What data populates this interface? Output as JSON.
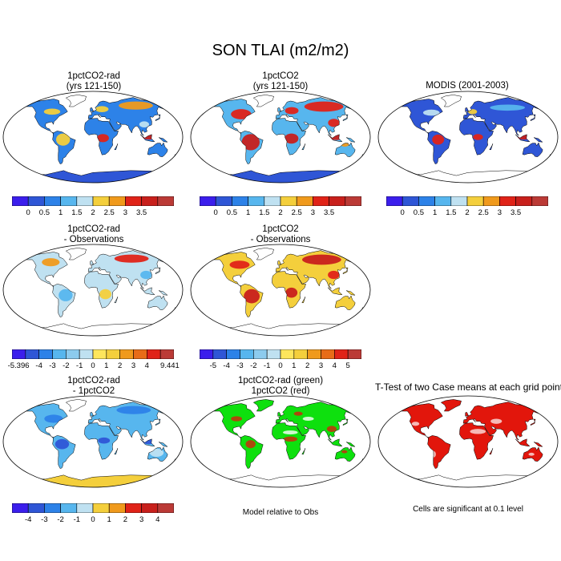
{
  "title": "SON TLAI (m2/m2)",
  "colors": {
    "tlai": [
      "#3b1eec",
      "#2f56d6",
      "#2d82e8",
      "#57b6ee",
      "#bfe1f1",
      "#f4cf3c",
      "#f09a1c",
      "#e02318",
      "#c8201c",
      "#bb3a36"
    ],
    "diff": [
      "#3b1eec",
      "#2f56d6",
      "#2d82e8",
      "#57b6ee",
      "#bfe1f1",
      "#f4cf3c",
      "#f09a1c",
      "#e02318",
      "#c8201c",
      "#bb3a36"
    ],
    "green": "#0ee00e",
    "red": "#e2160c",
    "ocean": "#ffffff",
    "border": "#000000"
  },
  "panels": [
    {
      "id": "p1",
      "title1": "1pctCO2-rad",
      "title2": "(yrs 121-150)",
      "style": "tlai1"
    },
    {
      "id": "p2",
      "title1": "1pctCO2",
      "title2": "(yrs 121-150)",
      "style": "tlai2"
    },
    {
      "id": "p3",
      "title1": "MODIS (2001-2003)",
      "title2": "",
      "style": "modis"
    },
    {
      "id": "p4",
      "title1": "1pctCO2-rad",
      "title2": "- Observations",
      "style": "diff1"
    },
    {
      "id": "p5",
      "title1": "1pctCO2",
      "title2": "- Observations",
      "style": "diff2"
    },
    {
      "id": "p7",
      "title1": "1pctCO2-rad",
      "title2": "- 1pctCO2",
      "style": "diff3"
    },
    {
      "id": "p8",
      "title1": "1pctCO2-rad (green)",
      "title2": "1pctCO2 (red)",
      "style": "greenred"
    },
    {
      "id": "p9",
      "title1": "T-Test of two Case means at each grid point",
      "title2": "",
      "style": "ttest"
    }
  ],
  "colorbars": {
    "cb1": {
      "labels": [
        "0",
        "0.5",
        "1",
        "1.5",
        "2",
        "2.5",
        "3",
        "3.5"
      ]
    },
    "cb2": {
      "labels": [
        "0",
        "0.5",
        "1",
        "1.5",
        "2",
        "2.5",
        "3",
        "3.5"
      ]
    },
    "cb3": {
      "labels": [
        "0",
        "0.5",
        "1",
        "1.5",
        "2",
        "2.5",
        "3",
        "3.5"
      ]
    },
    "cb4": {
      "labels": [
        "-5.396",
        "-4",
        "-3",
        "-2",
        "-1",
        "0",
        "1",
        "2",
        "3",
        "4",
        "9.441"
      ]
    },
    "cb5": {
      "labels": [
        "-5",
        "-4",
        "-3",
        "-2",
        "-1",
        "0",
        "1",
        "2",
        "3",
        "4",
        "5"
      ]
    },
    "cb7": {
      "labels": [
        "-4",
        "-3",
        "-2",
        "-1",
        "0",
        "1",
        "2",
        "3",
        "4"
      ]
    }
  },
  "notes": {
    "model_relative": "Model relative to Obs",
    "significant": "Cells are significant at 0.1 level"
  }
}
